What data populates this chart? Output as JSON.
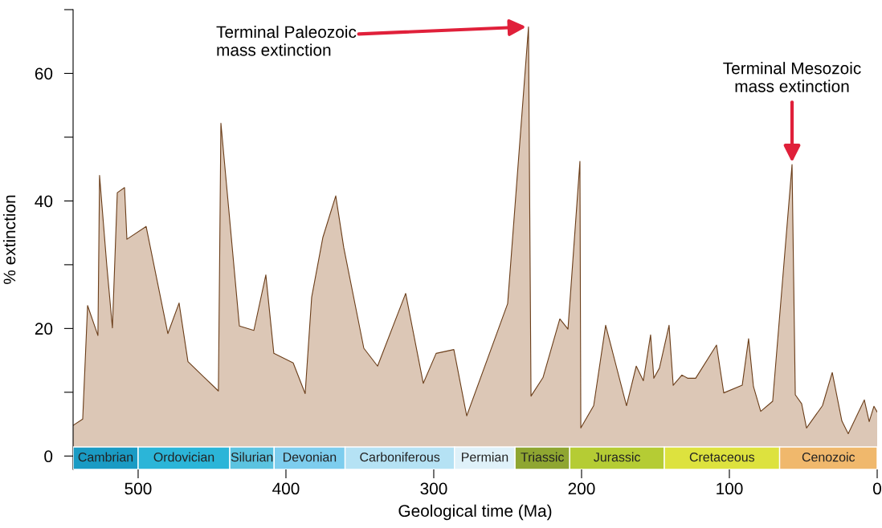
{
  "chart_data": {
    "type": "area",
    "xlabel": "Geological time (Ma)",
    "ylabel": "% extinction",
    "xlim": [
      544,
      0
    ],
    "xticks": [
      500,
      400,
      300,
      200,
      100,
      0
    ],
    "ylim": [
      -2.1,
      70
    ],
    "yticks": [
      0,
      {
        "value": 10,
        "label": null
      },
      20,
      {
        "value": 30,
        "label": null
      },
      40,
      {
        "value": 50,
        "label": null
      },
      60,
      {
        "value": 70,
        "label": null
      }
    ],
    "grid": false,
    "series": [
      {
        "color": "#6b3e1a",
        "x": [
          544.0,
          537.5,
          534.2,
          527.2,
          526.1,
          521.2,
          517.4,
          514.1,
          509.2,
          507.6,
          494.6,
          479.9,
          472.3,
          466.3,
          445.7,
          444.0,
          431.5,
          421.7,
          413.6,
          408.2,
          395.1,
          387.0,
          382.6,
          375.0,
          366.3,
          360.9,
          347.3,
          338.0,
          319.0,
          307.1,
          298.4,
          286.4,
          277.7,
          250.0,
          235.9,
          234.2,
          226.1,
          214.7,
          209.2,
          201.1,
          200.5,
          191.8,
          183.7,
          169.6,
          163.0,
          158.2,
          153.3,
          151.1,
          147.3,
          140.8,
          138.0,
          132.1,
          128.3,
          122.8,
          108.7,
          103.8,
          91.3,
          87.0,
          83.7,
          78.8,
          70.7,
          57.6,
          55.4,
          51.1,
          47.8,
          37.0,
          30.4,
          23.9,
          19.6,
          8.7,
          5.4,
          2.2,
          0
        ],
        "values": [
          4.8,
          5.8,
          23.6,
          18.9,
          44.0,
          29.9,
          20.1,
          41.3,
          42.1,
          34.0,
          36.0,
          19.2,
          24.0,
          14.8,
          10.2,
          52.2,
          20.4,
          19.7,
          28.4,
          16.1,
          14.6,
          9.8,
          24.9,
          34.3,
          40.8,
          32.7,
          16.9,
          14.1,
          25.5,
          11.4,
          16.1,
          16.7,
          6.3,
          23.9,
          67.3,
          9.4,
          12.3,
          21.5,
          19.9,
          46.2,
          4.4,
          7.9,
          20.5,
          7.9,
          14.1,
          11.8,
          19.0,
          12.2,
          13.8,
          20.5,
          11.1,
          12.7,
          12.2,
          12.2,
          17.4,
          9.9,
          11.1,
          18.4,
          10.9,
          7.0,
          8.6,
          45.7,
          9.6,
          8.2,
          4.4,
          7.9,
          13.1,
          5.5,
          3.5,
          8.8,
          5.4,
          7.8,
          6.9
        ]
      }
    ],
    "bands": [
      {
        "axis": "x",
        "from": 544,
        "to": 500,
        "label": "Cambrian",
        "color": "#1a9bc4"
      },
      {
        "axis": "x",
        "from": 500,
        "to": 438,
        "label": "Ordovician",
        "color": "#2bb5d8"
      },
      {
        "axis": "x",
        "from": 438,
        "to": 408,
        "label": "Silurian",
        "color": "#5bc3e0"
      },
      {
        "axis": "x",
        "from": 408,
        "to": 360,
        "label": "Devonian",
        "color": "#7dcdee"
      },
      {
        "axis": "x",
        "from": 360,
        "to": 286,
        "label": "Carboniferous",
        "color": "#b5e2f4"
      },
      {
        "axis": "x",
        "from": 286,
        "to": 245,
        "label": "Permian",
        "color": "#dff1f9"
      },
      {
        "axis": "x",
        "from": 245,
        "to": 208,
        "label": "Triassic",
        "color": "#8fa631"
      },
      {
        "axis": "x",
        "from": 208,
        "to": 144,
        "label": "Jurassic",
        "color": "#b5cc34"
      },
      {
        "axis": "x",
        "from": 144,
        "to": 66,
        "label": "Cretaceous",
        "color": "#dde23e"
      },
      {
        "axis": "x",
        "from": 66,
        "to": 0,
        "label": "Cenozoic",
        "color": "#f0b86c"
      }
    ],
    "annotations": [
      {
        "text": "Terminal Paleozoic\nmass extinction",
        "x": 235.9,
        "y": 67.3
      },
      {
        "text": "Terminal Mesozoic\nmass extinction",
        "x": 57.6,
        "y": 45.7
      }
    ]
  }
}
